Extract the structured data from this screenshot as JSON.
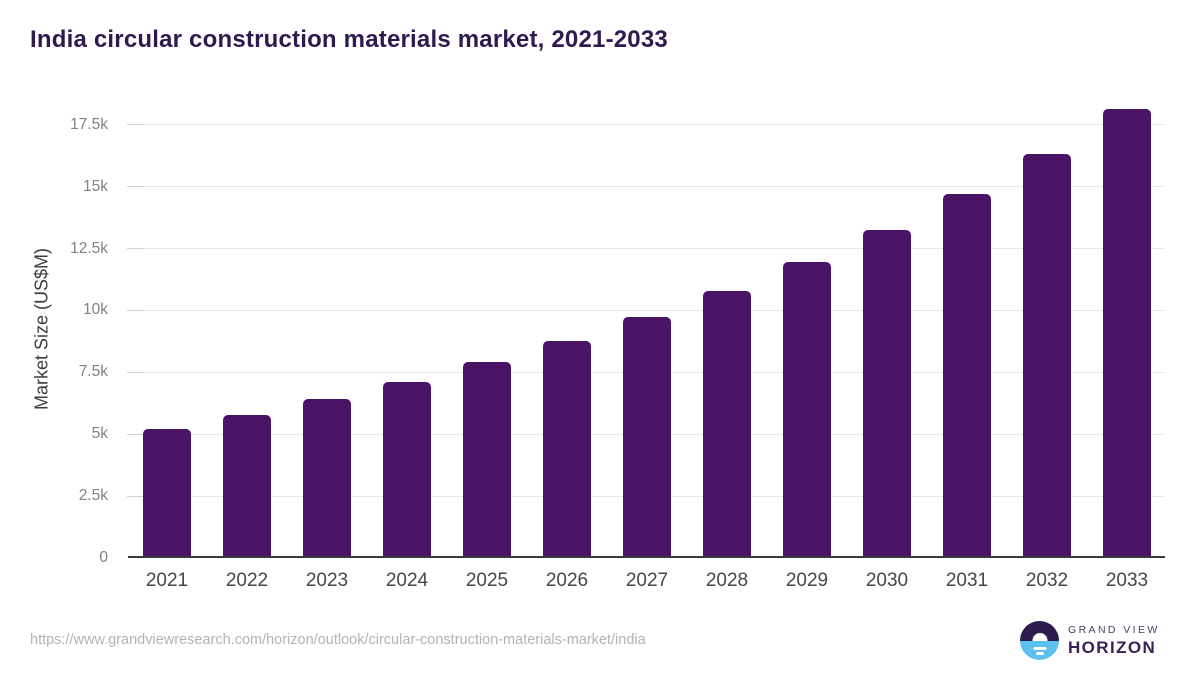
{
  "page": {
    "title": "India circular construction materials market, 2021-2033"
  },
  "chart_data": {
    "type": "bar",
    "title": "India circular construction materials market, 2021-2033",
    "xlabel": "",
    "ylabel": "Market Size (US$M)",
    "categories": [
      "2021",
      "2022",
      "2023",
      "2024",
      "2025",
      "2026",
      "2027",
      "2028",
      "2029",
      "2030",
      "2031",
      "2032",
      "2033"
    ],
    "values": [
      5150,
      5700,
      6350,
      7050,
      7820,
      8680,
      9640,
      10700,
      11880,
      13190,
      14640,
      16260,
      18050
    ],
    "ytick_labels": [
      "0",
      "2.5k",
      "5k",
      "7.5k",
      "10k",
      "12.5k",
      "15k",
      "17.5k"
    ],
    "ytick_values": [
      0,
      2500,
      5000,
      7500,
      10000,
      12500,
      15000,
      17500
    ],
    "ylim": [
      0,
      18500
    ],
    "grid": "horizontal",
    "legend": "none",
    "bar_color": "#4a1366"
  },
  "colors": {
    "title_text": "#2e1a4f",
    "bar": "#4a1366",
    "gridline": "#e9e9e9",
    "axis_line": "#3a3a3e",
    "y_tick_text": "#828282",
    "x_tick_text": "#464646",
    "url_text": "#b3b3b3",
    "logo_purple": "#2d1b4e",
    "logo_blue": "#5cc1ee"
  },
  "footer": {
    "source_url": "https://www.grandviewresearch.com/horizon/outlook/circular-construction-materials-market/india",
    "logo": {
      "line1": "GRAND VIEW",
      "line2": "HORIZON"
    }
  }
}
